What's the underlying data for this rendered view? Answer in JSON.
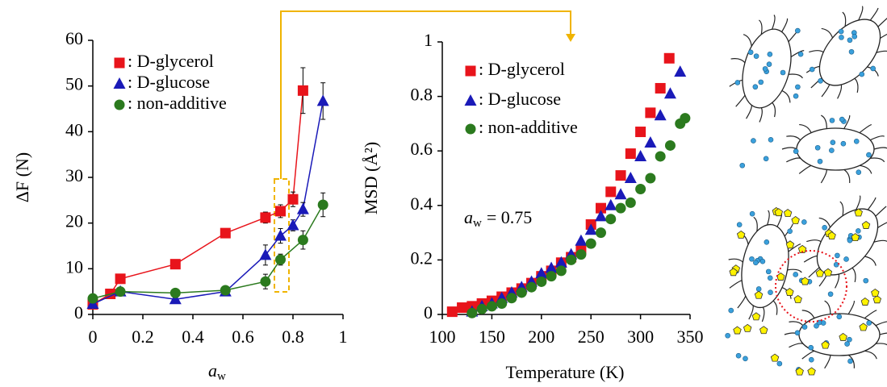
{
  "chart_data": [
    {
      "type": "scatter",
      "connect": true,
      "x_label": {
        "symbol": "a",
        "subscript": "w"
      },
      "y_label": "ΔF (N)",
      "xlim": [
        0,
        1
      ],
      "xticks": [
        0,
        0.2,
        0.4,
        0.6,
        0.8,
        1
      ],
      "ylim": [
        0,
        60
      ],
      "yticks": [
        0,
        10,
        20,
        30,
        40,
        50,
        60
      ],
      "series": [
        {
          "name": ": D-glycerol",
          "color": "#e8141b",
          "marker": "square",
          "x": [
            0,
            0.07,
            0.11,
            0.33,
            0.53,
            0.69,
            0.75,
            0.8,
            0.84
          ],
          "values": [
            2.2,
            4.5,
            7.8,
            11,
            17.8,
            21.2,
            22.6,
            25.2,
            49
          ],
          "errors": [
            0.6,
            0.6,
            0.8,
            1,
            0.6,
            1.2,
            1.4,
            1.6,
            5
          ]
        },
        {
          "name": ": D-glucose",
          "color": "#1a1ab8",
          "marker": "triangle",
          "x": [
            0,
            0.11,
            0.33,
            0.53,
            0.69,
            0.75,
            0.8,
            0.84,
            0.92
          ],
          "values": [
            2.3,
            5,
            3.3,
            5,
            13,
            17.2,
            19.5,
            23,
            46.7
          ],
          "errors": [
            0.5,
            0.6,
            0.5,
            0.6,
            2.2,
            1.6,
            1.2,
            1.5,
            4
          ]
        },
        {
          "name": ": non-additive",
          "color": "#2b7a1e",
          "marker": "circle",
          "x": [
            0,
            0.11,
            0.33,
            0.53,
            0.69,
            0.75,
            0.84,
            0.92
          ],
          "values": [
            3.5,
            5,
            4.7,
            5.3,
            7.2,
            12,
            16.3,
            24
          ],
          "errors": [
            0.8,
            0.6,
            0.6,
            0.6,
            1.6,
            1.2,
            2,
            2.6
          ]
        }
      ]
    },
    {
      "type": "scatter",
      "connect": false,
      "x_label": "Temperature (K)",
      "y_label": "MSD (Å²)",
      "annotation": {
        "symbol": "a",
        "subscript": "w",
        "text": "= 0.75"
      },
      "xlim": [
        100,
        350
      ],
      "xticks": [
        100,
        150,
        200,
        250,
        300,
        350
      ],
      "ylim": [
        0,
        1
      ],
      "yticks": [
        0,
        0.2,
        0.4,
        0.6,
        0.8,
        1
      ],
      "series": [
        {
          "name": ": D-glycerol",
          "color": "#e8141b",
          "marker": "square",
          "x": [
            110,
            120,
            130,
            140,
            150,
            160,
            170,
            180,
            190,
            200,
            210,
            220,
            230,
            240,
            250,
            260,
            270,
            280,
            290,
            300,
            310,
            320,
            329
          ],
          "values": [
            0.01,
            0.025,
            0.03,
            0.04,
            0.05,
            0.065,
            0.08,
            0.095,
            0.115,
            0.14,
            0.16,
            0.19,
            0.21,
            0.24,
            0.33,
            0.39,
            0.45,
            0.51,
            0.59,
            0.67,
            0.74,
            0.83,
            0.94
          ]
        },
        {
          "name": ": D-glucose",
          "color": "#1a1ab8",
          "marker": "triangle",
          "x": [
            130,
            140,
            150,
            160,
            170,
            180,
            190,
            200,
            210,
            220,
            230,
            240,
            250,
            260,
            270,
            280,
            290,
            300,
            310,
            320,
            330,
            340
          ],
          "values": [
            0.01,
            0.03,
            0.04,
            0.06,
            0.08,
            0.1,
            0.12,
            0.15,
            0.17,
            0.19,
            0.22,
            0.27,
            0.31,
            0.36,
            0.4,
            0.44,
            0.5,
            0.58,
            0.63,
            0.73,
            0.81,
            0.89
          ]
        },
        {
          "name": ": non-additive",
          "color": "#2b7a1e",
          "marker": "circle",
          "x": [
            130,
            140,
            150,
            160,
            170,
            180,
            190,
            200,
            210,
            220,
            230,
            240,
            250,
            260,
            270,
            280,
            290,
            300,
            310,
            320,
            330,
            340,
            345
          ],
          "values": [
            0.005,
            0.02,
            0.03,
            0.04,
            0.06,
            0.08,
            0.1,
            0.12,
            0.14,
            0.16,
            0.2,
            0.22,
            0.26,
            0.3,
            0.35,
            0.39,
            0.41,
            0.46,
            0.5,
            0.58,
            0.62,
            0.7,
            0.72
          ]
        }
      ]
    }
  ]
}
